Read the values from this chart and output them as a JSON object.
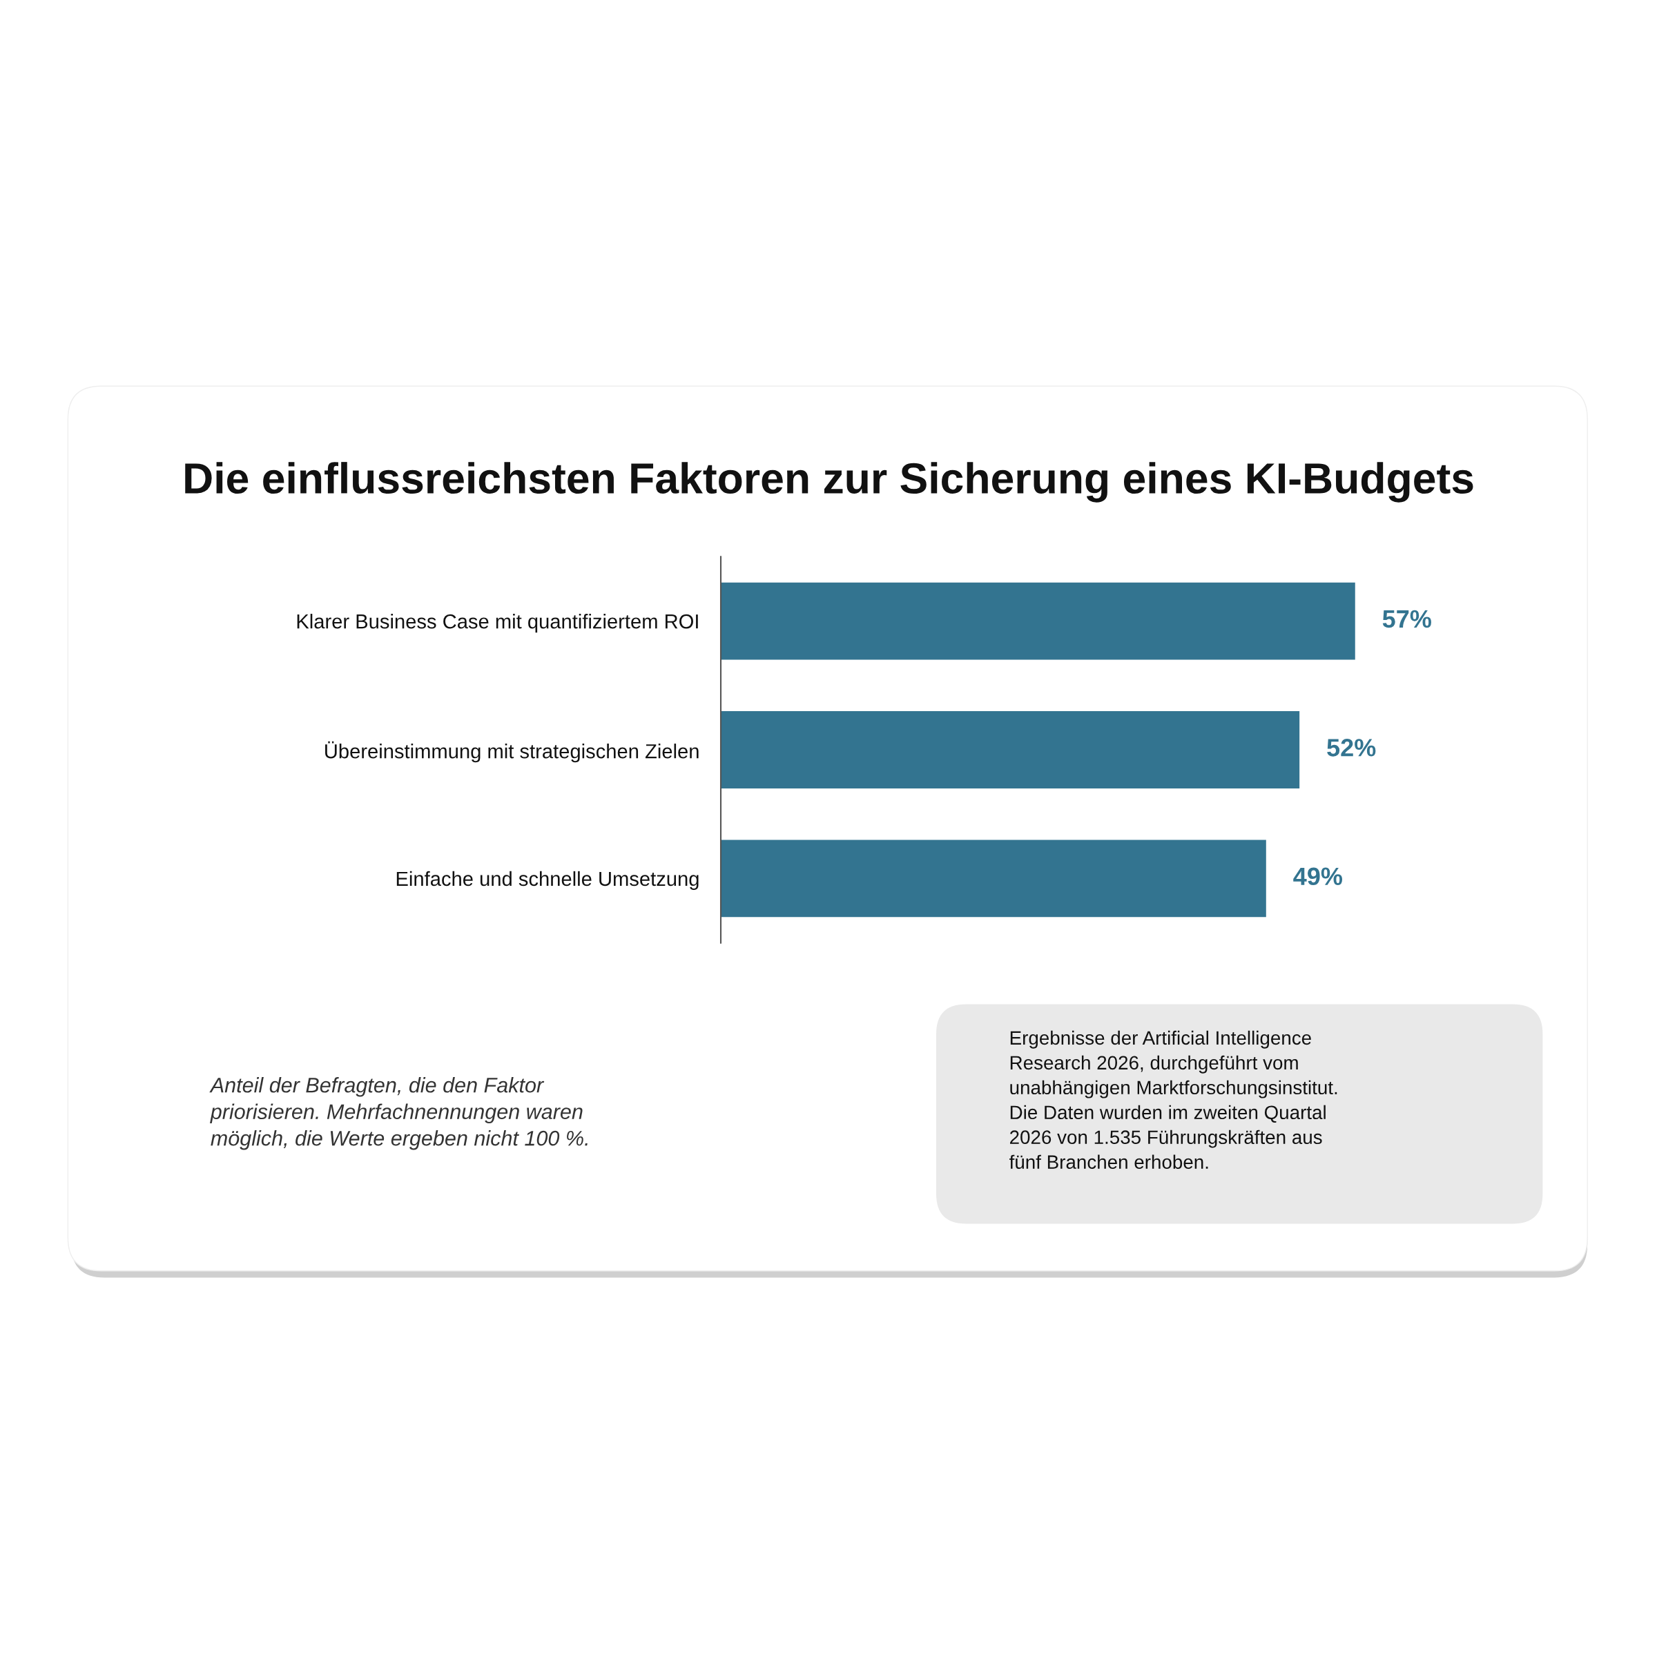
{
  "chart_data": {
    "type": "bar",
    "orientation": "horizontal",
    "data_labels": true,
    "value_labels": [
      "57%",
      "52%",
      "49%"
    ],
    "title": "Die einflussreichsten Faktoren zur Sicherung eines KI-Budgets",
    "categories": [
      "Klarer Business Case mit quantifiziertem ROI",
      "Übereinstimmung mit strategischen Zielen",
      "Einfache und schnelle Umsetzung"
    ],
    "values": [
      57,
      52,
      49
    ],
    "color": "#337490",
    "legend": false,
    "tick_labels": "y",
    "annotations": [
      "Anteil der Befragten, die den Faktor\npriorisieren. Mehrfachnennungen waren\nmöglich, die Werte ergeben nicht 100 %.",
      "Ergebnisse der Artificial Intelligence\nResearch 2026, durchgeführt vom\nunabhängigen Marktforschungsinstitut.\nDie Daten wurden im zweiten Quartal\n2026 von 1.535 Führungskräften aus\nfünf Branchen erhoben."
    ]
  }
}
